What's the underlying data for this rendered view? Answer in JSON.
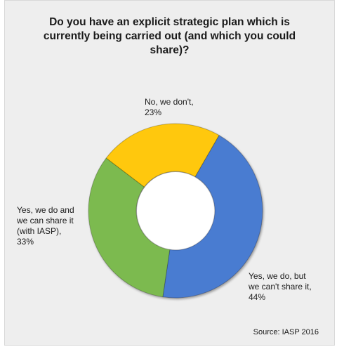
{
  "chart_data": {
    "type": "pie",
    "variant": "donut",
    "title": "Do you have an explicit strategic plan which is\ncurrently being carried out (and which you could\nshare)?",
    "slices": [
      {
        "label": "Yes, we do, but\nwe can't share it,\n44%",
        "value": 44,
        "color": "#4a7bd1"
      },
      {
        "label": "Yes, we do and\nwe can share it\n(with IASP),\n33%",
        "value": 33,
        "color": "#7cba4f"
      },
      {
        "label": "No, we don't,\n23%",
        "value": 23,
        "color": "#ffc807"
      }
    ],
    "source": "Source: IASP 2016"
  }
}
